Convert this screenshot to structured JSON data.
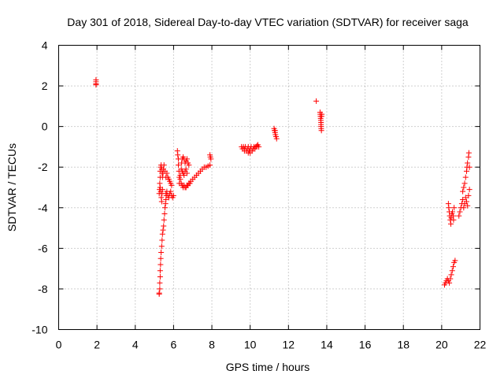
{
  "chart_data": {
    "type": "scatter",
    "title": "Day 301 of 2018, Sidereal Day-to-day VTEC variation (SDTVAR) for receiver saga",
    "xlabel": "GPS time / hours",
    "ylabel": "SDTVAR / TECUs",
    "xlim": [
      0,
      22
    ],
    "ylim": [
      -10,
      4
    ],
    "xticks": [
      0,
      2,
      4,
      6,
      8,
      10,
      12,
      14,
      16,
      18,
      20,
      22
    ],
    "yticks": [
      -10,
      -8,
      -6,
      -4,
      -2,
      0,
      2,
      4
    ],
    "grid": true,
    "marker": "+",
    "marker_color": "#ff0000",
    "series": [
      {
        "name": "SDTVAR",
        "points": [
          [
            1.95,
            2.3
          ],
          [
            1.95,
            2.2
          ],
          [
            1.95,
            2.1
          ],
          [
            1.95,
            2.05
          ],
          [
            5.25,
            -8.25
          ],
          [
            5.25,
            -8.2
          ],
          [
            5.28,
            -8.0
          ],
          [
            5.28,
            -7.7
          ],
          [
            5.3,
            -7.4
          ],
          [
            5.3,
            -7.1
          ],
          [
            5.32,
            -6.8
          ],
          [
            5.33,
            -6.5
          ],
          [
            5.35,
            -6.2
          ],
          [
            5.38,
            -5.9
          ],
          [
            5.4,
            -5.6
          ],
          [
            5.42,
            -5.3
          ],
          [
            5.45,
            -5.1
          ],
          [
            5.48,
            -4.9
          ],
          [
            5.5,
            -4.6
          ],
          [
            5.53,
            -4.3
          ],
          [
            5.55,
            -4.0
          ],
          [
            5.58,
            -3.8
          ],
          [
            5.6,
            -3.6
          ],
          [
            5.62,
            -3.4
          ],
          [
            5.25,
            -3.3
          ],
          [
            5.27,
            -3.1
          ],
          [
            5.3,
            -3.0
          ],
          [
            5.33,
            -3.2
          ],
          [
            5.36,
            -3.5
          ],
          [
            5.38,
            -3.7
          ],
          [
            5.4,
            -3.3
          ],
          [
            5.42,
            -3.1
          ],
          [
            5.28,
            -2.8
          ],
          [
            5.3,
            -2.5
          ],
          [
            5.3,
            -2.2
          ],
          [
            5.33,
            -2.0
          ],
          [
            5.35,
            -1.9
          ],
          [
            5.38,
            -2.1
          ],
          [
            5.4,
            -2.3
          ],
          [
            5.42,
            -2.5
          ],
          [
            5.45,
            -2.3
          ],
          [
            5.47,
            -2.1
          ],
          [
            5.5,
            -1.9
          ],
          [
            5.55,
            -2.2
          ],
          [
            5.6,
            -2.5
          ],
          [
            5.65,
            -2.3
          ],
          [
            5.7,
            -2.5
          ],
          [
            5.75,
            -2.6
          ],
          [
            5.8,
            -2.7
          ],
          [
            5.85,
            -2.8
          ],
          [
            5.9,
            -2.9
          ],
          [
            5.6,
            -3.3
          ],
          [
            5.7,
            -3.4
          ],
          [
            5.75,
            -3.5
          ],
          [
            5.8,
            -3.3
          ],
          [
            5.85,
            -3.2
          ],
          [
            5.9,
            -3.4
          ],
          [
            5.95,
            -3.5
          ],
          [
            6.0,
            -3.4
          ],
          [
            5.65,
            -3.2
          ],
          [
            6.2,
            -1.2
          ],
          [
            6.22,
            -1.4
          ],
          [
            6.25,
            -1.6
          ],
          [
            6.25,
            -1.9
          ],
          [
            6.28,
            -2.2
          ],
          [
            6.3,
            -2.5
          ],
          [
            6.3,
            -2.8
          ],
          [
            6.35,
            -2.4
          ],
          [
            6.4,
            -2.1
          ],
          [
            6.42,
            -1.8
          ],
          [
            6.45,
            -1.6
          ],
          [
            6.5,
            -1.5
          ],
          [
            6.55,
            -1.6
          ],
          [
            6.6,
            -1.8
          ],
          [
            6.65,
            -1.7
          ],
          [
            6.7,
            -1.6
          ],
          [
            6.75,
            -1.8
          ],
          [
            6.8,
            -1.9
          ],
          [
            6.35,
            -2.6
          ],
          [
            6.4,
            -2.8
          ],
          [
            6.45,
            -2.9
          ],
          [
            6.5,
            -3.0
          ],
          [
            6.55,
            -2.9
          ],
          [
            6.6,
            -3.0
          ],
          [
            6.65,
            -3.0
          ],
          [
            6.7,
            -2.9
          ],
          [
            6.75,
            -2.9
          ],
          [
            6.8,
            -2.8
          ],
          [
            6.85,
            -2.8
          ],
          [
            6.45,
            -2.2
          ],
          [
            6.5,
            -2.3
          ],
          [
            6.55,
            -2.4
          ],
          [
            6.6,
            -2.2
          ],
          [
            6.65,
            -2.1
          ],
          [
            6.7,
            -2.3
          ],
          [
            6.9,
            -2.7
          ],
          [
            7.0,
            -2.6
          ],
          [
            7.1,
            -2.5
          ],
          [
            7.2,
            -2.4
          ],
          [
            7.3,
            -2.3
          ],
          [
            7.4,
            -2.2
          ],
          [
            7.5,
            -2.1
          ],
          [
            7.6,
            -2.0
          ],
          [
            7.7,
            -2.0
          ],
          [
            7.8,
            -1.95
          ],
          [
            7.9,
            -1.9
          ],
          [
            7.9,
            -1.4
          ],
          [
            7.92,
            -1.5
          ],
          [
            7.95,
            -1.6
          ],
          [
            9.55,
            -1.0
          ],
          [
            9.6,
            -1.1
          ],
          [
            9.65,
            -1.0
          ],
          [
            9.7,
            -1.1
          ],
          [
            9.75,
            -1.0
          ],
          [
            9.8,
            -1.2
          ],
          [
            9.85,
            -1.1
          ],
          [
            9.9,
            -1.0
          ],
          [
            9.95,
            -1.2
          ],
          [
            10.0,
            -1.1
          ],
          [
            10.05,
            -1.0
          ],
          [
            10.1,
            -1.2
          ],
          [
            10.15,
            -1.1
          ],
          [
            10.2,
            -1.0
          ],
          [
            10.25,
            -1.1
          ],
          [
            10.3,
            -1.0
          ],
          [
            10.35,
            -0.95
          ],
          [
            10.4,
            -0.9
          ],
          [
            10.45,
            -1.0
          ],
          [
            9.7,
            -1.2
          ],
          [
            9.9,
            -1.3
          ],
          [
            10.0,
            -1.3
          ],
          [
            11.25,
            -0.1
          ],
          [
            11.27,
            -0.2
          ],
          [
            11.3,
            -0.3
          ],
          [
            11.32,
            -0.4
          ],
          [
            11.35,
            -0.5
          ],
          [
            11.38,
            -0.6
          ],
          [
            11.3,
            -0.2
          ],
          [
            13.45,
            1.25
          ],
          [
            13.65,
            0.7
          ],
          [
            13.66,
            0.6
          ],
          [
            13.67,
            0.5
          ],
          [
            13.68,
            0.4
          ],
          [
            13.69,
            0.3
          ],
          [
            13.7,
            0.2
          ],
          [
            13.7,
            0.1
          ],
          [
            13.7,
            0.0
          ],
          [
            13.71,
            -0.1
          ],
          [
            13.72,
            -0.2
          ],
          [
            13.73,
            0.5
          ],
          [
            13.74,
            0.6
          ],
          [
            20.15,
            -7.8
          ],
          [
            20.2,
            -7.7
          ],
          [
            20.25,
            -7.6
          ],
          [
            20.3,
            -7.5
          ],
          [
            20.35,
            -7.6
          ],
          [
            20.4,
            -7.7
          ],
          [
            20.45,
            -7.5
          ],
          [
            20.5,
            -7.3
          ],
          [
            20.55,
            -7.1
          ],
          [
            20.6,
            -6.9
          ],
          [
            20.65,
            -6.7
          ],
          [
            20.7,
            -6.6
          ],
          [
            20.35,
            -3.8
          ],
          [
            20.37,
            -4.0
          ],
          [
            20.4,
            -4.2
          ],
          [
            20.42,
            -4.4
          ],
          [
            20.45,
            -4.6
          ],
          [
            20.48,
            -4.8
          ],
          [
            20.5,
            -4.5
          ],
          [
            20.53,
            -4.3
          ],
          [
            20.56,
            -4.2
          ],
          [
            20.6,
            -4.4
          ],
          [
            20.62,
            -4.6
          ],
          [
            20.65,
            -4.0
          ],
          [
            20.9,
            -4.4
          ],
          [
            20.95,
            -4.2
          ],
          [
            21.0,
            -4.0
          ],
          [
            21.05,
            -3.8
          ],
          [
            21.1,
            -3.6
          ],
          [
            21.1,
            -3.2
          ],
          [
            21.15,
            -3.0
          ],
          [
            21.2,
            -2.8
          ],
          [
            21.25,
            -2.5
          ],
          [
            21.3,
            -2.2
          ],
          [
            21.32,
            -2.0
          ],
          [
            21.35,
            -1.8
          ],
          [
            21.4,
            -1.5
          ],
          [
            21.42,
            -1.3
          ],
          [
            21.15,
            -4.0
          ],
          [
            21.2,
            -3.8
          ],
          [
            21.25,
            -3.5
          ],
          [
            21.3,
            -3.7
          ],
          [
            21.35,
            -3.9
          ],
          [
            21.4,
            -3.4
          ],
          [
            21.45,
            -3.1
          ],
          [
            21.45,
            -2.0
          ]
        ]
      }
    ]
  }
}
